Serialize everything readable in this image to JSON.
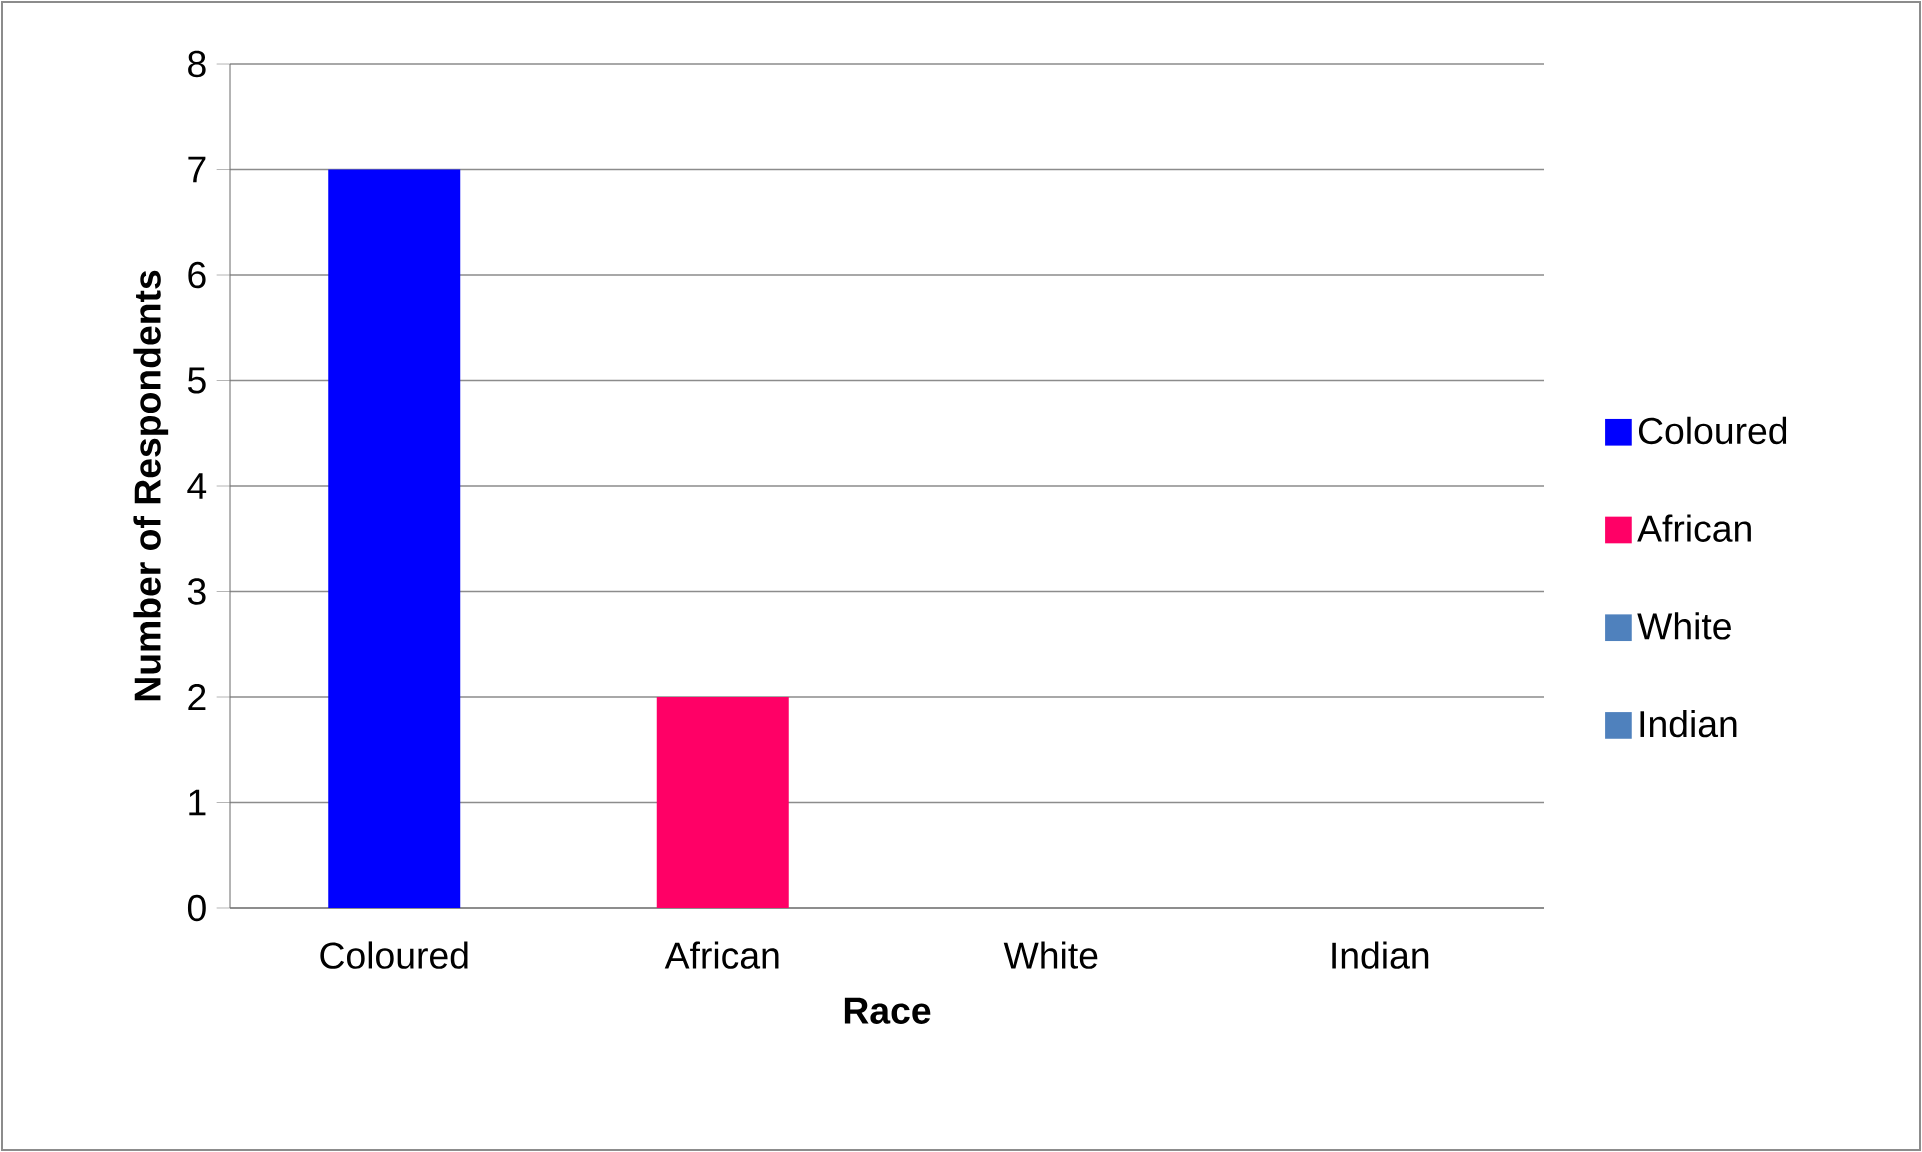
{
  "chart_data": {
    "type": "bar",
    "categories": [
      "Coloured",
      "African",
      "White",
      "Indian"
    ],
    "series": [
      {
        "name": "Coloured",
        "color": "#0000ff",
        "values": [
          7,
          null,
          null,
          null
        ]
      },
      {
        "name": "African",
        "color": "#ff0066",
        "values": [
          null,
          2,
          null,
          null
        ]
      },
      {
        "name": "White",
        "color": "#4f81bd",
        "values": [
          null,
          null,
          0,
          null
        ]
      },
      {
        "name": "Indian",
        "color": "#4f81bd",
        "values": [
          null,
          null,
          null,
          0
        ]
      }
    ],
    "xlabel": "Race",
    "ylabel": "Number of Respondents",
    "ylim": [
      0,
      8
    ],
    "yticks": [
      0,
      1,
      2,
      3,
      4,
      5,
      6,
      7,
      8
    ],
    "grid": "y",
    "legend": "right"
  }
}
